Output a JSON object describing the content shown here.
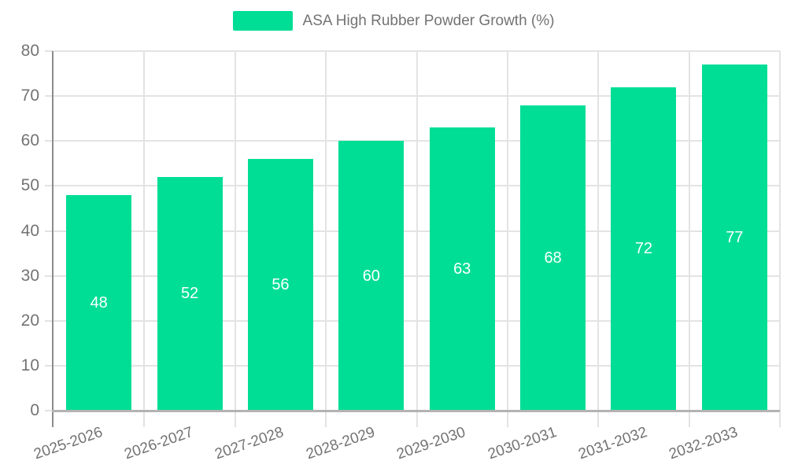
{
  "legend": {
    "label": "ASA High Rubber Powder Growth (%)"
  },
  "chart_data": {
    "type": "bar",
    "title": "",
    "series_name": "ASA High Rubber Powder Growth (%)",
    "categories": [
      "2025-2026",
      "2026-2027",
      "2027-2028",
      "2028-2029",
      "2029-2030",
      "2030-2031",
      "2031-2032",
      "2032-2033"
    ],
    "values": [
      48,
      52,
      56,
      60,
      63,
      68,
      72,
      77
    ],
    "value_labels": [
      "48",
      "52",
      "56",
      "60",
      "63",
      "68",
      "72",
      "77"
    ],
    "xlabel": "",
    "ylabel": "",
    "ylim": [
      0,
      80
    ],
    "ytick_interval": 10,
    "yticks": [
      "0",
      "10",
      "20",
      "30",
      "40",
      "50",
      "60",
      "70",
      "80"
    ],
    "grid": true,
    "legend_position": "top",
    "bar_label_position": "inside-center"
  },
  "colors": {
    "bar": "#00de95",
    "axis_line": "#8c8c8c",
    "baseline": "#b3b3b3",
    "gridline": "#e3e3e3",
    "tick_text": "#737373",
    "value_label": "#ffffff",
    "background": "#ffffff"
  }
}
